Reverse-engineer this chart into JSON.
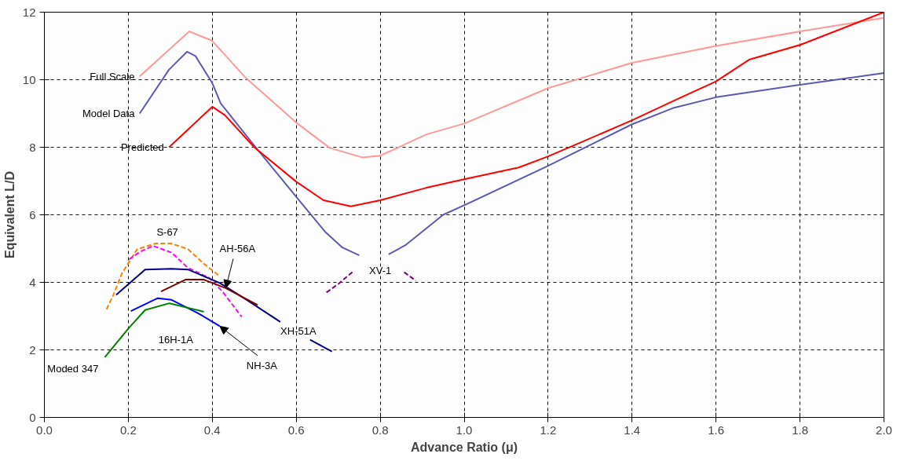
{
  "chart_data": {
    "type": "line",
    "xlabel": "Advance Ratio (μ)",
    "ylabel": "Equivalent L/D",
    "xlim": [
      0,
      2
    ],
    "ylim": [
      0,
      12
    ],
    "xticks": [
      {
        "value": 0,
        "label": "0.0"
      },
      {
        "value": 0.2,
        "label": "0.2"
      },
      {
        "value": 0.4,
        "label": "0.4"
      },
      {
        "value": 0.6,
        "label": "0.6"
      },
      {
        "value": 0.8,
        "label": "0.8"
      },
      {
        "value": 1,
        "label": "1.0"
      },
      {
        "value": 1.2,
        "label": "1.2"
      },
      {
        "value": 1.4,
        "label": "1.4"
      },
      {
        "value": 1.6,
        "label": "1.6"
      },
      {
        "value": 1.8,
        "label": "1.8"
      },
      {
        "value": 2,
        "label": "2.0"
      }
    ],
    "yticks": [
      0,
      2,
      4,
      6,
      8,
      10,
      12
    ],
    "grid": true,
    "line_style": "solid",
    "marker": "none",
    "series": [
      {
        "name": "Full Scale",
        "color": "#ff9999",
        "x": [
          0.227,
          0.345,
          0.4,
          0.48,
          0.6,
          0.68,
          0.757,
          0.8,
          0.91,
          1.0,
          1.2,
          1.4,
          1.6,
          1.8,
          2.0
        ],
        "values": [
          10.1,
          11.43,
          11.15,
          10.05,
          8.73,
          7.98,
          7.7,
          7.75,
          8.38,
          8.7,
          9.75,
          10.5,
          11.0,
          11.43,
          11.83
        ]
      },
      {
        "name": "Model Data",
        "color": "#5a5ab4",
        "x": [
          0.227,
          0.297,
          0.34,
          0.36,
          0.4,
          0.42,
          0.5,
          0.6,
          0.67,
          0.71,
          0.75,
          0.78,
          0.82,
          0.86,
          0.95,
          1.0,
          1.2,
          1.4,
          1.5,
          1.6,
          1.8,
          2.0
        ],
        "values": [
          9.0,
          10.3,
          10.83,
          10.7,
          9.9,
          9.3,
          8.05,
          6.53,
          5.48,
          5.03,
          4.8,
          null,
          4.83,
          5.1,
          6.0,
          6.28,
          7.45,
          8.68,
          9.17,
          9.48,
          9.85,
          10.2
        ]
      },
      {
        "name": "Predicted",
        "color": "#ff0000",
        "x": [
          0.297,
          0.4,
          0.43,
          0.5,
          0.6,
          0.665,
          0.73,
          0.8,
          0.91,
          1.0,
          1.13,
          1.2,
          1.27,
          1.4,
          1.5,
          1.6,
          1.68,
          1.8,
          2.0
        ],
        "values": [
          8.0,
          9.2,
          8.95,
          8.0,
          6.98,
          6.43,
          6.25,
          6.43,
          6.8,
          7.05,
          7.4,
          7.73,
          8.1,
          8.8,
          9.38,
          9.95,
          10.6,
          11.03,
          12.0
        ]
      },
      {
        "name": "S-67",
        "color": "#ff8000",
        "line_style": "dashed",
        "x": [
          0.148,
          0.164,
          0.185,
          0.221,
          0.265,
          0.303,
          0.342,
          0.38,
          0.418
        ],
        "values": [
          3.2,
          3.62,
          4.27,
          4.98,
          5.15,
          5.15,
          4.98,
          4.55,
          4.18
        ]
      },
      {
        "color": "#ff00ff",
        "line_style": "dashed",
        "x": [
          0.202,
          0.227,
          0.259,
          0.303,
          0.342,
          0.393,
          0.424,
          0.47
        ],
        "values": [
          4.68,
          4.9,
          5.08,
          4.88,
          4.43,
          4.13,
          3.73,
          2.98
        ]
      },
      {
        "name": "XH-51A",
        "color": "#000080",
        "x": [
          0.171,
          0.24,
          0.303,
          0.342,
          0.418,
          0.482,
          0.562,
          0.6,
          0.633,
          0.685
        ],
        "values": [
          3.63,
          4.38,
          4.4,
          4.38,
          3.98,
          3.48,
          2.83,
          null,
          2.3,
          1.95
        ]
      },
      {
        "name": "AH-56A",
        "color": "#800000",
        "x": [
          0.278,
          0.336,
          0.38,
          0.432,
          0.508
        ],
        "values": [
          3.73,
          4.08,
          4.08,
          3.83,
          3.33
        ]
      },
      {
        "name": "NH-3A",
        "color": "#0000ff",
        "x": [
          0.206,
          0.27,
          0.303,
          0.367,
          0.418
        ],
        "values": [
          3.15,
          3.53,
          3.48,
          3.08,
          2.7
        ]
      },
      {
        "name": "Moded 347",
        "color": "#008000",
        "x": [
          0.144,
          0.2,
          0.24,
          0.298,
          0.38
        ],
        "values": [
          1.78,
          2.63,
          3.18,
          3.38,
          3.13
        ]
      },
      {
        "name": "XV-1",
        "color": "#800080",
        "line_style": "dashed",
        "x": [
          0.672,
          0.7,
          0.738,
          0.8,
          0.857,
          0.885
        ],
        "values": [
          3.7,
          3.95,
          4.35,
          null,
          4.3,
          4.05
        ]
      }
    ],
    "annotations": [
      "16H-1A"
    ]
  }
}
